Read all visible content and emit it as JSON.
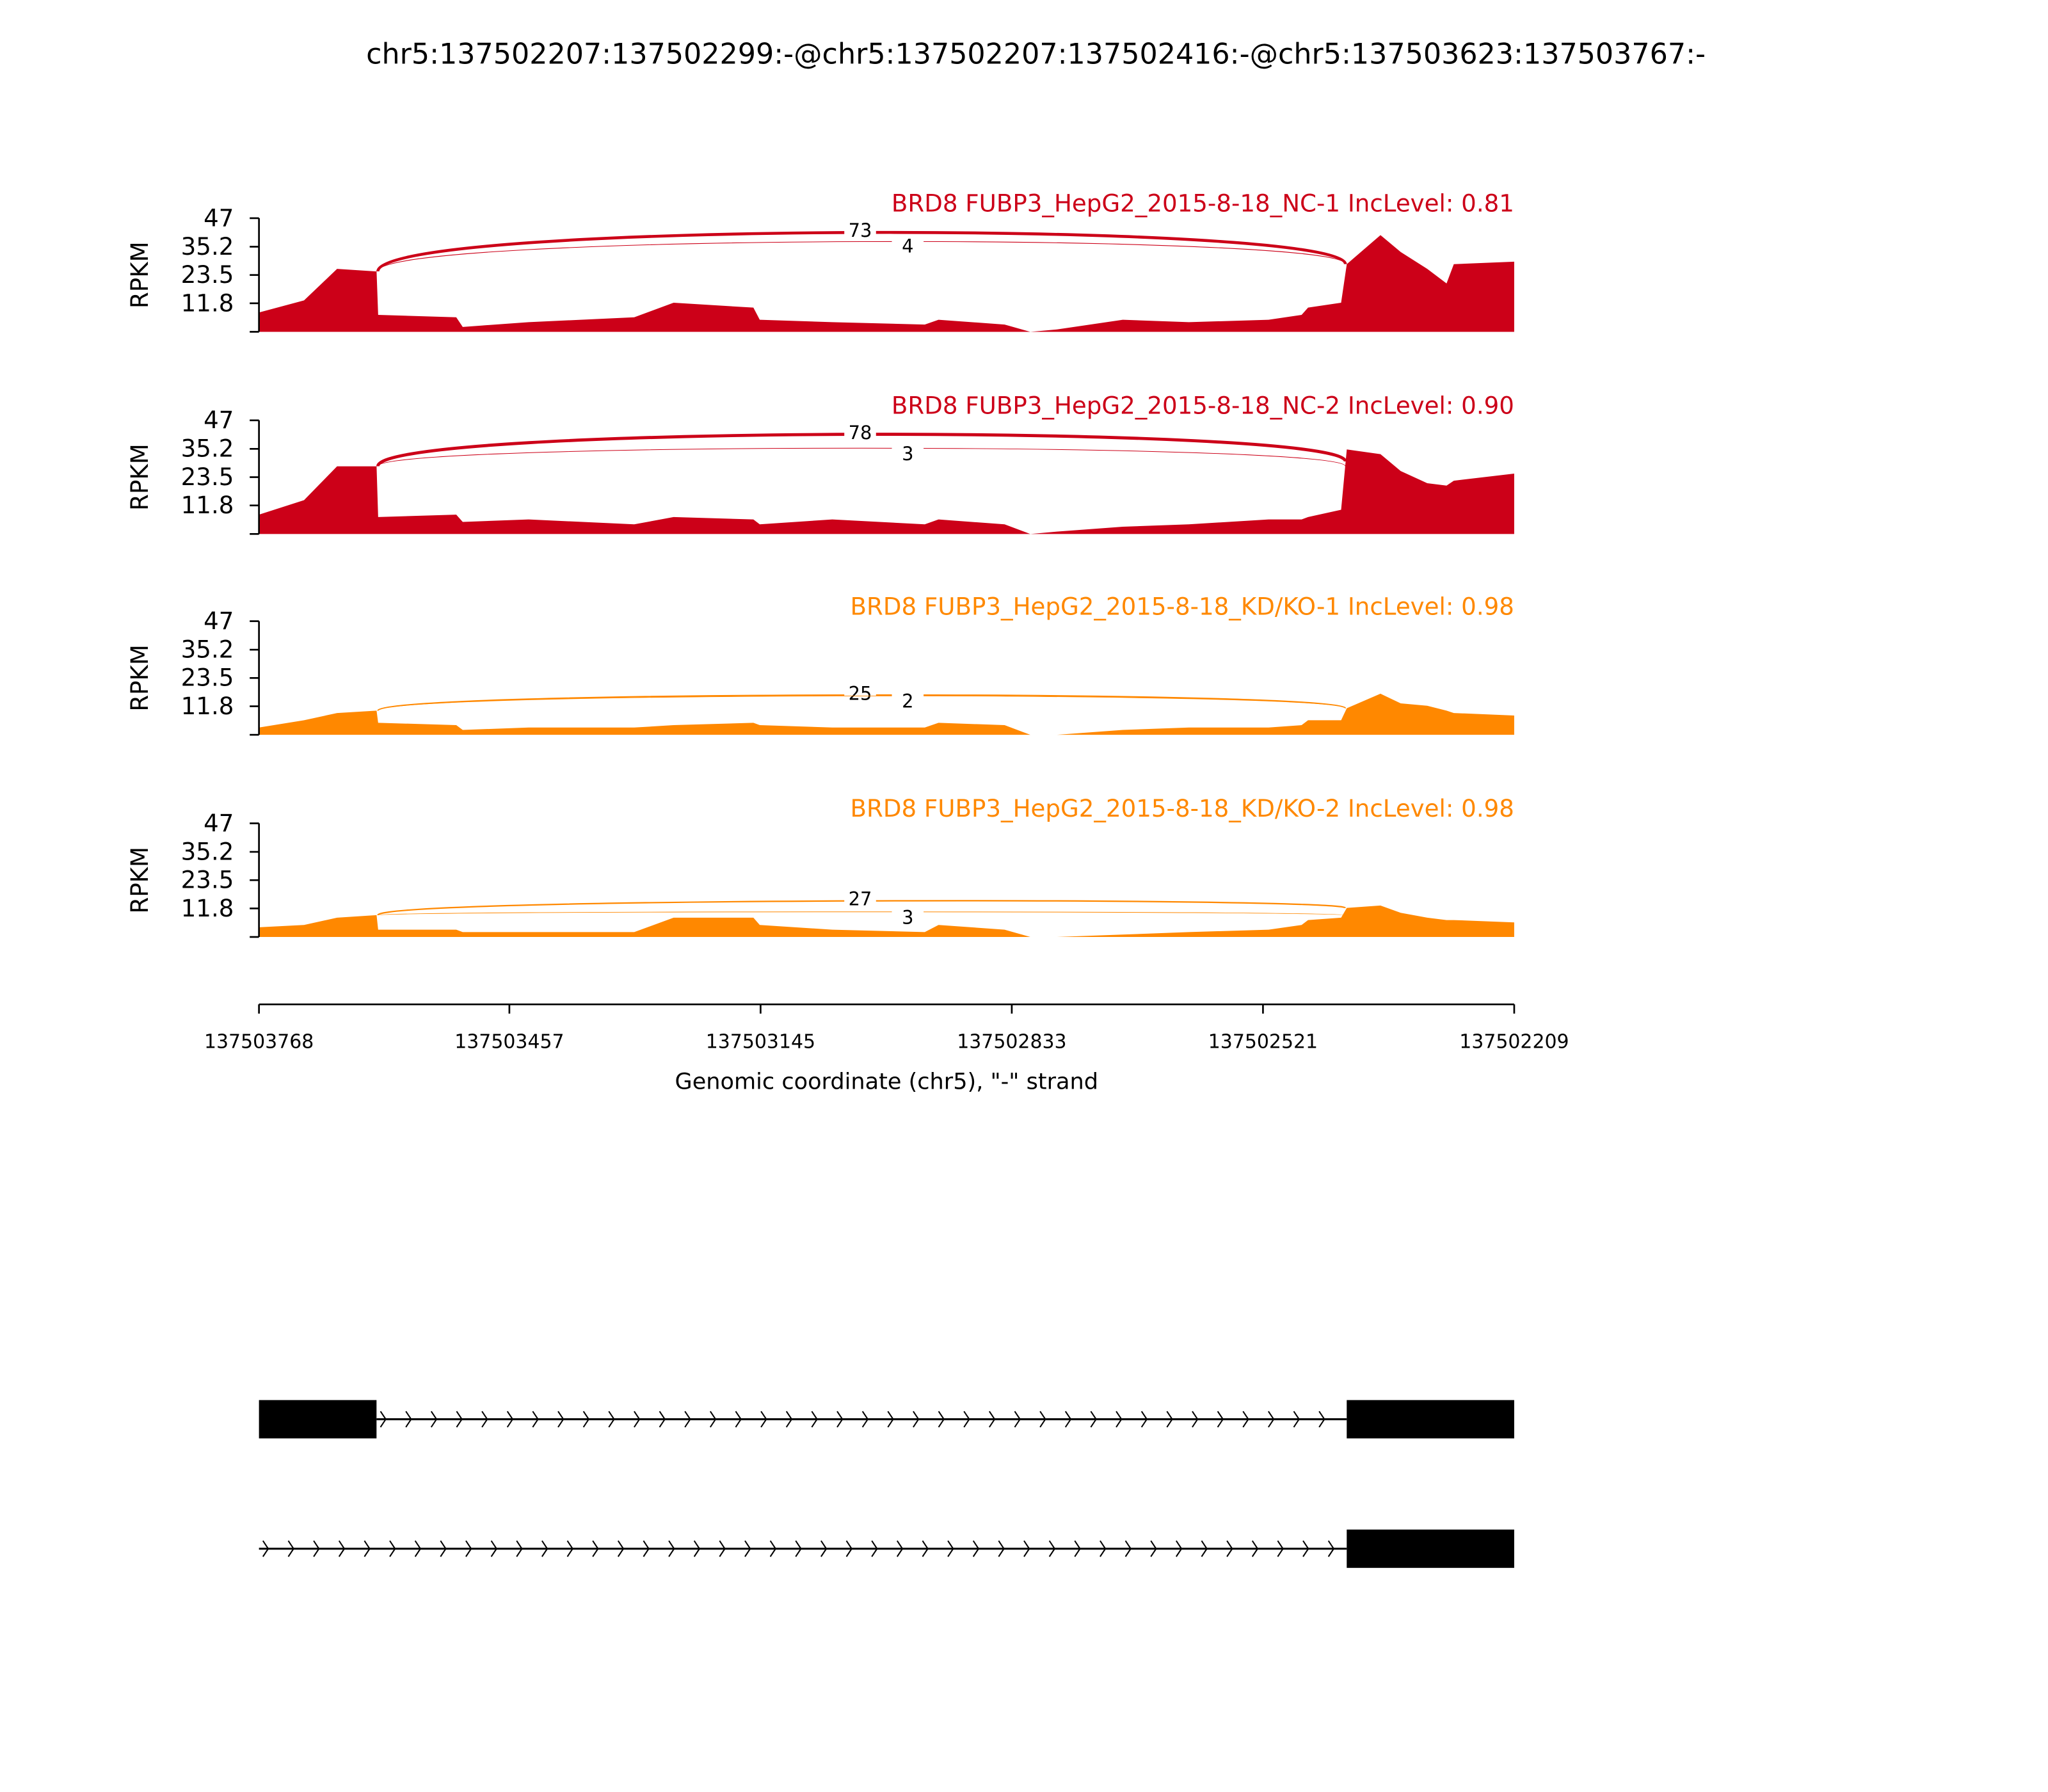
{
  "chart_data": {
    "type": "area",
    "title": "chr5:137502207:137502299:-@chr5:137502207:137502416:-@chr5:137503623:137503767:-",
    "xlabel": "Genomic coordinate (chr5), \"-\" strand",
    "ylabel": "RPKM",
    "xlim": [
      137503768,
      137502209
    ],
    "x_reversed": true,
    "xticks": [
      "137503768",
      "137503457",
      "137503145",
      "137502833",
      "137502521",
      "137502209"
    ],
    "ylim": [
      0,
      47
    ],
    "yticks": [
      "47",
      "35.2",
      "23.5",
      "11.8"
    ],
    "grid": false,
    "x": [
      137503768,
      137503712,
      137503671,
      137503622,
      137503620,
      137503523,
      137503515,
      137503433,
      137503302,
      137503253,
      137503154,
      137503146,
      137503056,
      137502941,
      137502924,
      137502842,
      137502810,
      137502777,
      137502695,
      137502613,
      137502514,
      137502473,
      137502465,
      137502424,
      137502417,
      137502375,
      137502350,
      137502317,
      137502293,
      137502284,
      137502209
    ],
    "series": [
      {
        "name": "BRD8 FUBP3_HepG2_2015-8-18_NC-1 IncLevel: 0.81",
        "color": "#cc0018",
        "values": [
          8,
          13,
          26,
          25,
          7,
          6,
          2,
          4,
          6,
          12,
          10,
          5,
          4,
          3,
          5,
          3,
          0,
          1,
          5,
          4,
          5,
          7,
          10,
          12,
          28,
          40,
          33,
          26,
          20,
          28,
          29
        ],
        "junctions": [
          {
            "count": "73",
            "start": 137503622,
            "end": 137502417,
            "start_y": 25,
            "end_y": 28,
            "peak": 41.5
          },
          {
            "count": "4",
            "start": 137503622,
            "end": 137502417,
            "start_y": 25,
            "end_y": 28,
            "peak": 37.7
          }
        ]
      },
      {
        "name": "BRD8 FUBP3_HepG2_2015-8-18_NC-2 IncLevel: 0.90",
        "color": "#cc0018",
        "values": [
          8,
          14,
          28,
          28,
          7,
          8,
          5,
          6,
          4,
          7,
          6,
          4,
          6,
          4,
          6,
          4,
          0,
          1,
          3,
          4,
          6,
          6,
          7,
          10,
          35,
          33,
          26,
          21,
          20,
          22,
          25
        ],
        "junctions": [
          {
            "count": "78",
            "start": 137503622,
            "end": 137502417,
            "start_y": 28,
            "end_y": 30,
            "peak": 41.5
          },
          {
            "count": "3",
            "start": 137503622,
            "end": 137502417,
            "start_y": 28,
            "end_y": 28,
            "peak": 35.5
          }
        ]
      },
      {
        "name": "BRD8 FUBP3_HepG2_2015-8-18_KD/KO-1 IncLevel: 0.98",
        "color": "#ff8800",
        "values": [
          3,
          6,
          9,
          10,
          5,
          4,
          2,
          3,
          3,
          4,
          5,
          4,
          3,
          3,
          5,
          4,
          0,
          0,
          2,
          3,
          3,
          4,
          6,
          6,
          11,
          17,
          13,
          12,
          10,
          9,
          8
        ],
        "junctions": [
          {
            "count": "25",
            "start": 137503622,
            "end": 137502417,
            "start_y": 10,
            "end_y": 11,
            "peak": 16.6
          },
          {
            "count": "2",
            "start": 137503622,
            "end": 137502417,
            "start_y": 10,
            "end_y": 11,
            "peak": 16.2
          }
        ]
      },
      {
        "name": "BRD8 FUBP3_HepG2_2015-8-18_KD/KO-2 IncLevel: 0.98",
        "color": "#ff8800",
        "values": [
          4,
          5,
          8,
          9,
          3,
          3,
          2,
          2,
          2,
          8,
          8,
          5,
          3,
          2,
          5,
          3,
          0,
          0,
          1,
          2,
          3,
          5,
          7,
          8,
          12,
          13,
          10,
          8,
          7,
          7,
          6
        ],
        "junctions": [
          {
            "count": "27",
            "start": 137503622,
            "end": 137502417,
            "start_y": 9,
            "end_y": 12,
            "peak": 15.3
          },
          {
            "count": "3",
            "start": 137503622,
            "end": 137502417,
            "start_y": 9,
            "end_y": 9,
            "peak": 10.4
          }
        ]
      }
    ],
    "gene_models": [
      {
        "exons": [
          [
            137503768,
            137503622
          ],
          [
            137502417,
            137502209
          ]
        ],
        "intron": [
          137503622,
          137502417
        ]
      },
      {
        "exons": [
          [
            137502417,
            137502209
          ]
        ],
        "intron": [
          137503768,
          137502417
        ]
      }
    ]
  }
}
